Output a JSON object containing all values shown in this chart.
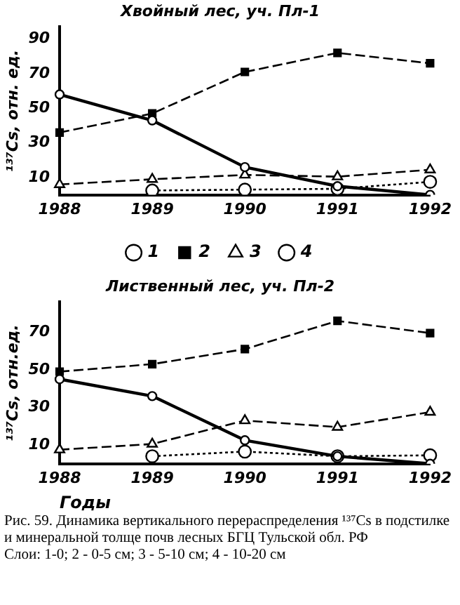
{
  "chart_data": [
    {
      "type": "line",
      "title": "Хвойный лес, уч. Пл-1",
      "ylabel": "¹³⁷Cs, отн. ед.",
      "categories": [
        "1988",
        "1989",
        "1990",
        "1991",
        "1992"
      ],
      "ylim": [
        0,
        97
      ],
      "yticks": [
        10,
        30,
        50,
        70,
        90
      ],
      "grid": false,
      "legend": "bottom",
      "series": [
        {
          "name": "1",
          "color": "#000000",
          "marker": "circle",
          "line_style": "solid",
          "values": [
            58,
            43,
            16,
            5,
            0
          ]
        },
        {
          "name": "2",
          "color": "#000000",
          "marker": "square",
          "line_style": "dashed",
          "values": [
            36,
            47,
            71,
            82,
            76
          ]
        },
        {
          "name": "3",
          "color": "#000000",
          "marker": "triangle",
          "line_style": "dashed",
          "values": [
            6,
            9,
            11.5,
            10.5,
            14.5
          ]
        },
        {
          "name": "4",
          "color": "#000000",
          "marker": "circle",
          "line_style": "dotted",
          "values": [
            null,
            2.5,
            3,
            3.5,
            7.5
          ]
        }
      ]
    },
    {
      "type": "line",
      "title": "Лиственный лес, уч. Пл-2",
      "ylabel": "¹³⁷Cs, отн.ед.",
      "xlabel": "Годы",
      "categories": [
        "1988",
        "1989",
        "1990",
        "1991",
        "1992"
      ],
      "ylim": [
        0,
        86
      ],
      "yticks": [
        10,
        30,
        50,
        70
      ],
      "grid": false,
      "series": [
        {
          "color": "#000000",
          "marker": "circle",
          "line_style": "solid",
          "values": [
            45,
            36,
            12.5,
            4,
            0
          ]
        },
        {
          "color": "#000000",
          "marker": "square",
          "line_style": "dashed",
          "values": [
            49,
            53,
            61,
            76,
            69.5
          ]
        },
        {
          "color": "#000000",
          "marker": "triangle",
          "line_style": "dashed",
          "values": [
            7.5,
            10.5,
            23,
            19.5,
            27.5
          ]
        },
        {
          "color": "#000000",
          "marker": "circle",
          "line_style": "dotted",
          "values": [
            null,
            4,
            6.5,
            4,
            4.5
          ]
        }
      ],
      "annotations": [
        "Рис. 59. Динамика вертикального перераспределения ¹³⁷Cs в подстилке и минеральной толще почв лесных БГЦ Тульской обл. РФ",
        "Слои: 1-0; 2 - 0-5 см; 3 - 5-10 см; 4 - 10-20 см"
      ]
    }
  ]
}
